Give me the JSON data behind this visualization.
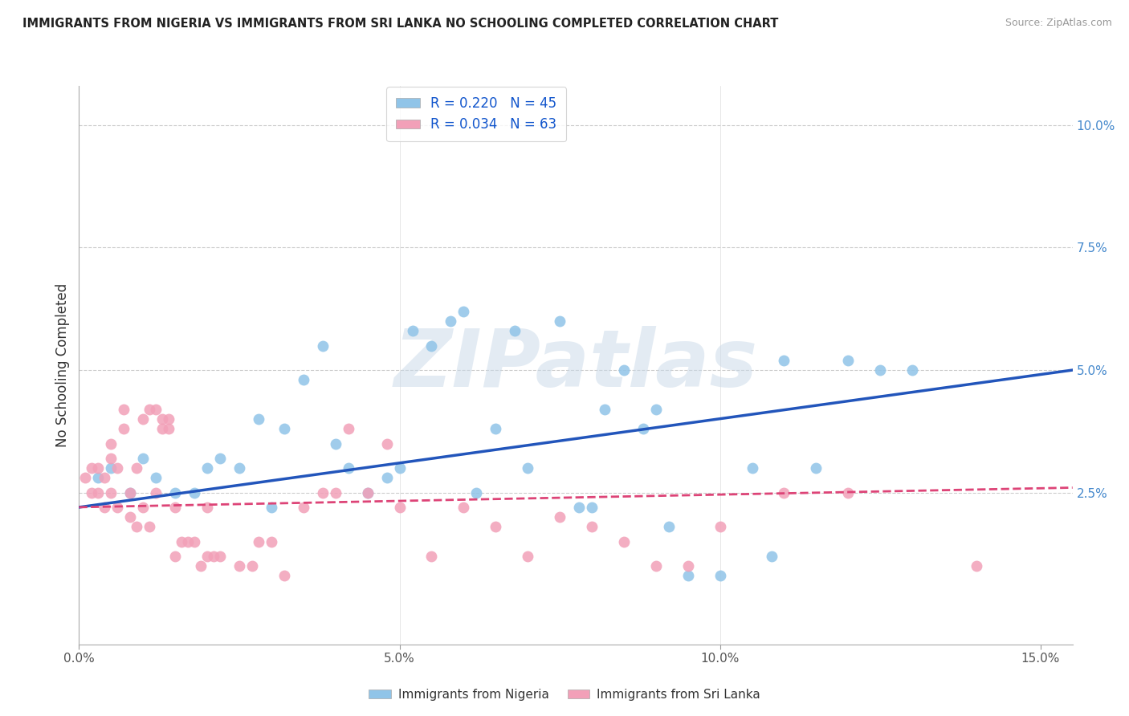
{
  "title": "IMMIGRANTS FROM NIGERIA VS IMMIGRANTS FROM SRI LANKA NO SCHOOLING COMPLETED CORRELATION CHART",
  "source": "Source: ZipAtlas.com",
  "ylabel": "No Schooling Completed",
  "watermark": "ZIPatlas",
  "legend_R_nigeria": "R = 0.220",
  "legend_N_nigeria": "N = 45",
  "legend_R_srilanka": "R = 0.034",
  "legend_N_srilanka": "N = 63",
  "legend_label_nigeria": "Immigrants from Nigeria",
  "legend_label_srilanka": "Immigrants from Sri Lanka",
  "color_nigeria": "#90C4E8",
  "color_srilanka": "#F2A0B8",
  "line_color_nigeria": "#2255BB",
  "line_color_srilanka": "#DD4477",
  "background_color": "#FFFFFF",
  "grid_color": "#CCCCCC",
  "xlim": [
    0.0,
    0.155
  ],
  "ylim": [
    -0.006,
    0.108
  ],
  "xtick_vals": [
    0.0,
    0.05,
    0.1,
    0.15
  ],
  "xticklabels": [
    "0.0%",
    "5.0%",
    "10.0%",
    "15.0%"
  ],
  "ytick_vals": [
    0.0,
    0.025,
    0.05,
    0.075,
    0.1
  ],
  "yticklabels": [
    "",
    "2.5%",
    "5.0%",
    "7.5%",
    "10.0%"
  ],
  "nigeria_x": [
    0.003,
    0.005,
    0.008,
    0.01,
    0.012,
    0.015,
    0.018,
    0.02,
    0.022,
    0.025,
    0.028,
    0.03,
    0.032,
    0.035,
    0.038,
    0.04,
    0.042,
    0.045,
    0.048,
    0.05,
    0.052,
    0.055,
    0.058,
    0.06,
    0.062,
    0.065,
    0.068,
    0.07,
    0.075,
    0.078,
    0.08,
    0.082,
    0.085,
    0.088,
    0.09,
    0.092,
    0.095,
    0.1,
    0.105,
    0.108,
    0.11,
    0.115,
    0.12,
    0.125,
    0.13
  ],
  "nigeria_y": [
    0.028,
    0.03,
    0.025,
    0.032,
    0.028,
    0.025,
    0.025,
    0.03,
    0.032,
    0.03,
    0.04,
    0.022,
    0.038,
    0.048,
    0.055,
    0.035,
    0.03,
    0.025,
    0.028,
    0.03,
    0.058,
    0.055,
    0.06,
    0.062,
    0.025,
    0.038,
    0.058,
    0.03,
    0.06,
    0.022,
    0.022,
    0.042,
    0.05,
    0.038,
    0.042,
    0.018,
    0.008,
    0.008,
    0.03,
    0.012,
    0.052,
    0.03,
    0.052,
    0.05,
    0.05
  ],
  "srilanka_x": [
    0.001,
    0.002,
    0.002,
    0.003,
    0.003,
    0.004,
    0.004,
    0.005,
    0.005,
    0.005,
    0.006,
    0.006,
    0.007,
    0.007,
    0.008,
    0.008,
    0.009,
    0.009,
    0.01,
    0.01,
    0.011,
    0.011,
    0.012,
    0.012,
    0.013,
    0.013,
    0.014,
    0.014,
    0.015,
    0.015,
    0.016,
    0.017,
    0.018,
    0.019,
    0.02,
    0.02,
    0.021,
    0.022,
    0.025,
    0.027,
    0.028,
    0.03,
    0.032,
    0.035,
    0.038,
    0.04,
    0.042,
    0.045,
    0.048,
    0.05,
    0.055,
    0.06,
    0.065,
    0.07,
    0.075,
    0.08,
    0.085,
    0.09,
    0.095,
    0.1,
    0.11,
    0.12,
    0.14
  ],
  "srilanka_y": [
    0.028,
    0.025,
    0.03,
    0.025,
    0.03,
    0.028,
    0.022,
    0.032,
    0.025,
    0.035,
    0.03,
    0.022,
    0.038,
    0.042,
    0.02,
    0.025,
    0.018,
    0.03,
    0.022,
    0.04,
    0.042,
    0.018,
    0.025,
    0.042,
    0.04,
    0.038,
    0.038,
    0.04,
    0.012,
    0.022,
    0.015,
    0.015,
    0.015,
    0.01,
    0.012,
    0.022,
    0.012,
    0.012,
    0.01,
    0.01,
    0.015,
    0.015,
    0.008,
    0.022,
    0.025,
    0.025,
    0.038,
    0.025,
    0.035,
    0.022,
    0.012,
    0.022,
    0.018,
    0.012,
    0.02,
    0.018,
    0.015,
    0.01,
    0.01,
    0.018,
    0.025,
    0.025,
    0.01
  ]
}
